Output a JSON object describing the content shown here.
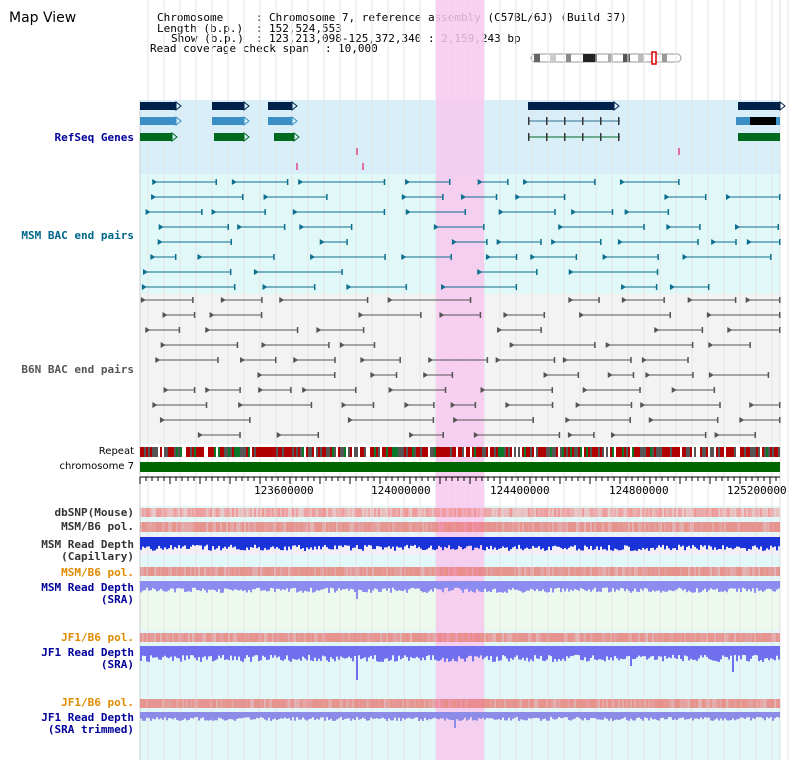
{
  "view": {
    "title": "Map View"
  },
  "info": {
    "chromosome_label": "Chromosome",
    "chromosome_value": "Chromosome 7, reference assembly (C57BL/6J) (Build 37)",
    "length_label": "Length (b.p.)",
    "length_value": "152,524,553",
    "show_label": "Show (b.p.)",
    "show_value": "123,213,098-125,372,340 : 2,159,243 bp",
    "read_label": "Read coverage check span",
    "read_value": "10,000",
    "sep": ":"
  },
  "tracks": {
    "refseq": "RefSeq Genes",
    "msm_bac": "MSM BAC end pairs",
    "b6n_bac": "B6N BAC end pairs",
    "repeat": "Repeat",
    "chromosome": "chromosome 7",
    "dbsnp": "dbSNP(Mouse)",
    "msm_b6_pol_1": "MSM/B6 pol.",
    "msm_depth_cap_1": "MSM Read Depth",
    "msm_depth_cap_2": "(Capillary)",
    "msm_b6_pol_2": "MSM/B6 pol.",
    "msm_depth_sra_1": "MSM Read Depth",
    "msm_depth_sra_2": "(SRA)",
    "jf1_b6_pol_1": "JF1/B6 pol.",
    "jf1_depth_sra_1": "JF1 Read Depth",
    "jf1_depth_sra_2": "(SRA)",
    "jf1_b6_pol_2": "JF1/B6 pol.",
    "jf1_depth_trim_1": "JF1 Read Depth",
    "jf1_depth_trim_2": "(SRA trimmed)"
  },
  "axis": {
    "ticks": [
      "123600000",
      "124000000",
      "124400000",
      "124800000",
      "125200000"
    ]
  },
  "colors": {
    "refseq_label": "#000099",
    "msm_label": "#006688",
    "b6n_label": "#555555",
    "highlight": "#f7c8ee",
    "chromosome_bar": "#006600",
    "orange_label": "#e08a00",
    "blue_label": "#000099"
  }
}
